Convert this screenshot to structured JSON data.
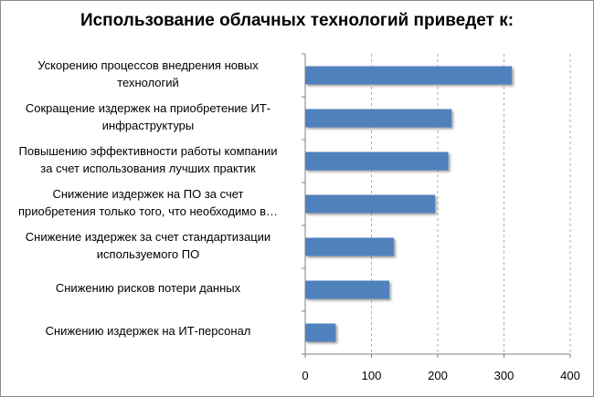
{
  "chart_data": {
    "type": "bar",
    "orientation": "horizontal",
    "title": "Использование облачных технологий приведет к:",
    "categories": [
      "Ускорению процессов внедрения новых\nтехнологий",
      "Сокращение издержек на приобретение ИТ-\nинфраструктуры",
      "Повышению эффективности работы компании\nза счет использования лучших практик",
      "Снижение издержек на ПО за счет\nприобретения только того, что необходимо в…",
      "Снижение издержек за счет стандартизации\nиспользуемого ПО",
      "Снижению рисков потери данных",
      "Снижению издержек на ИТ-персонал"
    ],
    "values": [
      312,
      221,
      216,
      196,
      134,
      127,
      46
    ],
    "xlim": [
      0,
      400
    ],
    "xticks": [
      "0",
      "100",
      "200",
      "300",
      "400"
    ],
    "grid": "vertical-dashed",
    "bar_color": "#4f81bd",
    "legend": "none"
  }
}
